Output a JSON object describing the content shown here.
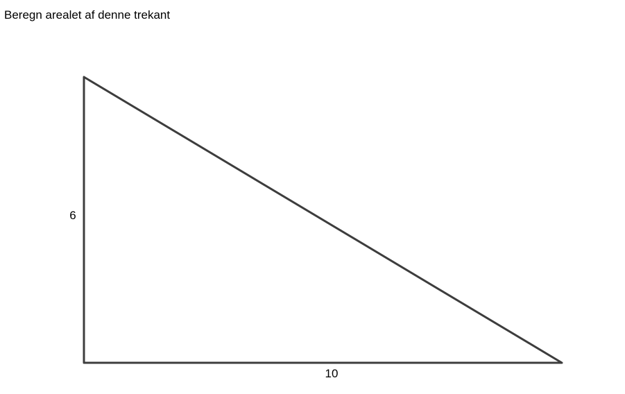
{
  "question": {
    "text": "Beregn arealet af denne trekant"
  },
  "triangle": {
    "height_label": "6",
    "base_label": "10",
    "stroke_color": "#3d3d3d",
    "fill_color": "#ffffff"
  }
}
